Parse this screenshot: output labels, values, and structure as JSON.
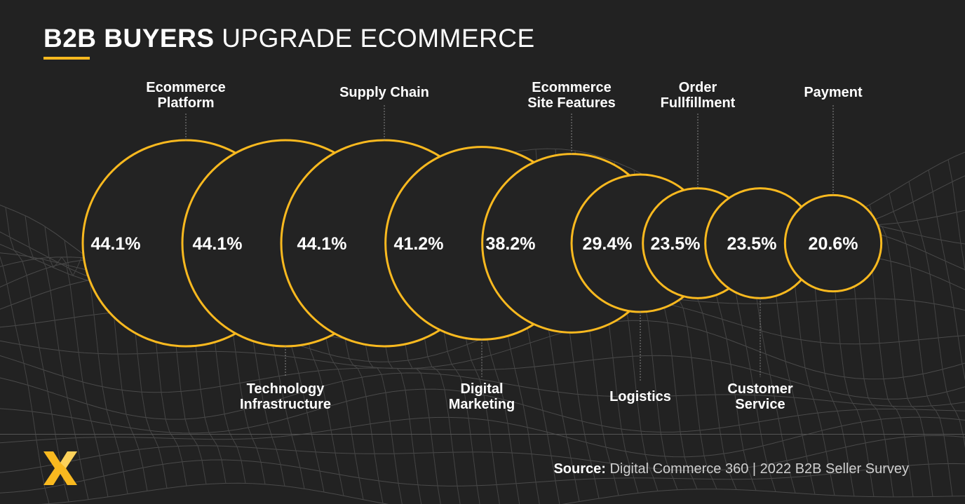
{
  "title": {
    "bold": "B2B BUYERS",
    "light": "UPGRADE ECOMMERCE"
  },
  "accent_color": "#f9b91f",
  "chart_data": {
    "type": "bubble",
    "categories": [
      "Ecommerce Platform",
      "Technology Infrastructure",
      "Supply Chain",
      "Digital Marketing",
      "Ecommerce Site Features",
      "Logistics",
      "Order Fullfillment",
      "Customer Service",
      "Payment"
    ],
    "category_lines": [
      [
        "Ecommerce",
        "Platform"
      ],
      [
        "Technology",
        "Infrastructure"
      ],
      [
        "Supply Chain"
      ],
      [
        "Digital",
        "Marketing"
      ],
      [
        "Ecommerce",
        "Site Features"
      ],
      [
        "Logistics"
      ],
      [
        "Order",
        "Fullfillment"
      ],
      [
        "Customer",
        "Service"
      ],
      [
        "Payment"
      ]
    ],
    "values": [
      44.1,
      44.1,
      44.1,
      41.2,
      38.2,
      29.4,
      23.5,
      23.5,
      20.6
    ],
    "value_labels": [
      "44.1%",
      "44.1%",
      "44.1%",
      "41.2%",
      "38.2%",
      "29.4%",
      "23.5%",
      "23.5%",
      "20.6%"
    ],
    "label_positions": [
      "top",
      "bottom",
      "top",
      "bottom",
      "top",
      "bottom",
      "top",
      "bottom",
      "top"
    ],
    "unit": "%"
  },
  "source": {
    "label": "Source:",
    "text": "Digital Commerce 360 | 2022 B2B Seller Survey"
  },
  "logo": "x-logo"
}
